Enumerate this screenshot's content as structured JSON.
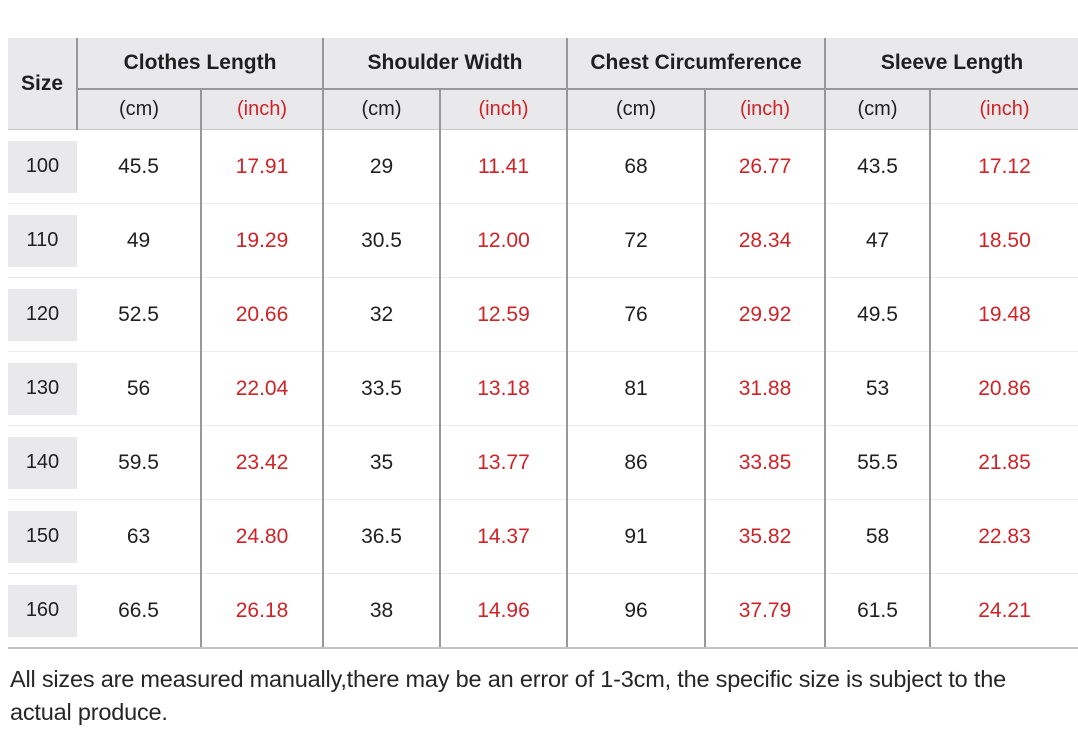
{
  "colors": {
    "accent_red": "#cf2328",
    "header_bg": "#e9e9eb",
    "grid_dark": "#98989b",
    "grid_light": "#ececec",
    "text": "#1f1f1f"
  },
  "table": {
    "corner_label": "Size",
    "unit_cm": "(cm)",
    "unit_inch": "(inch)",
    "groups": [
      {
        "label": "Clothes Length"
      },
      {
        "label": "Shoulder Width"
      },
      {
        "label": "Chest Circumference"
      },
      {
        "label": "Sleeve Length"
      }
    ],
    "rows": [
      {
        "size": "100",
        "values": [
          "45.5",
          "17.91",
          "29",
          "11.41",
          "68",
          "26.77",
          "43.5",
          "17.12"
        ]
      },
      {
        "size": "110",
        "values": [
          "49",
          "19.29",
          "30.5",
          "12.00",
          "72",
          "28.34",
          "47",
          "18.50"
        ]
      },
      {
        "size": "120",
        "values": [
          "52.5",
          "20.66",
          "32",
          "12.59",
          "76",
          "29.92",
          "49.5",
          "19.48"
        ]
      },
      {
        "size": "130",
        "values": [
          "56",
          "22.04",
          "33.5",
          "13.18",
          "81",
          "31.88",
          "53",
          "20.86"
        ]
      },
      {
        "size": "140",
        "values": [
          "59.5",
          "23.42",
          "35",
          "13.77",
          "86",
          "33.85",
          "55.5",
          "21.85"
        ]
      },
      {
        "size": "150",
        "values": [
          "63",
          "24.80",
          "36.5",
          "14.37",
          "91",
          "35.82",
          "58",
          "22.83"
        ]
      },
      {
        "size": "160",
        "values": [
          "66.5",
          "26.18",
          "38",
          "14.96",
          "96",
          "37.79",
          "61.5",
          "24.21"
        ]
      }
    ]
  },
  "footer": {
    "note": "All sizes are measured manually,there may be an error of 1-3cm, the specific size is subject to the actual produce."
  }
}
